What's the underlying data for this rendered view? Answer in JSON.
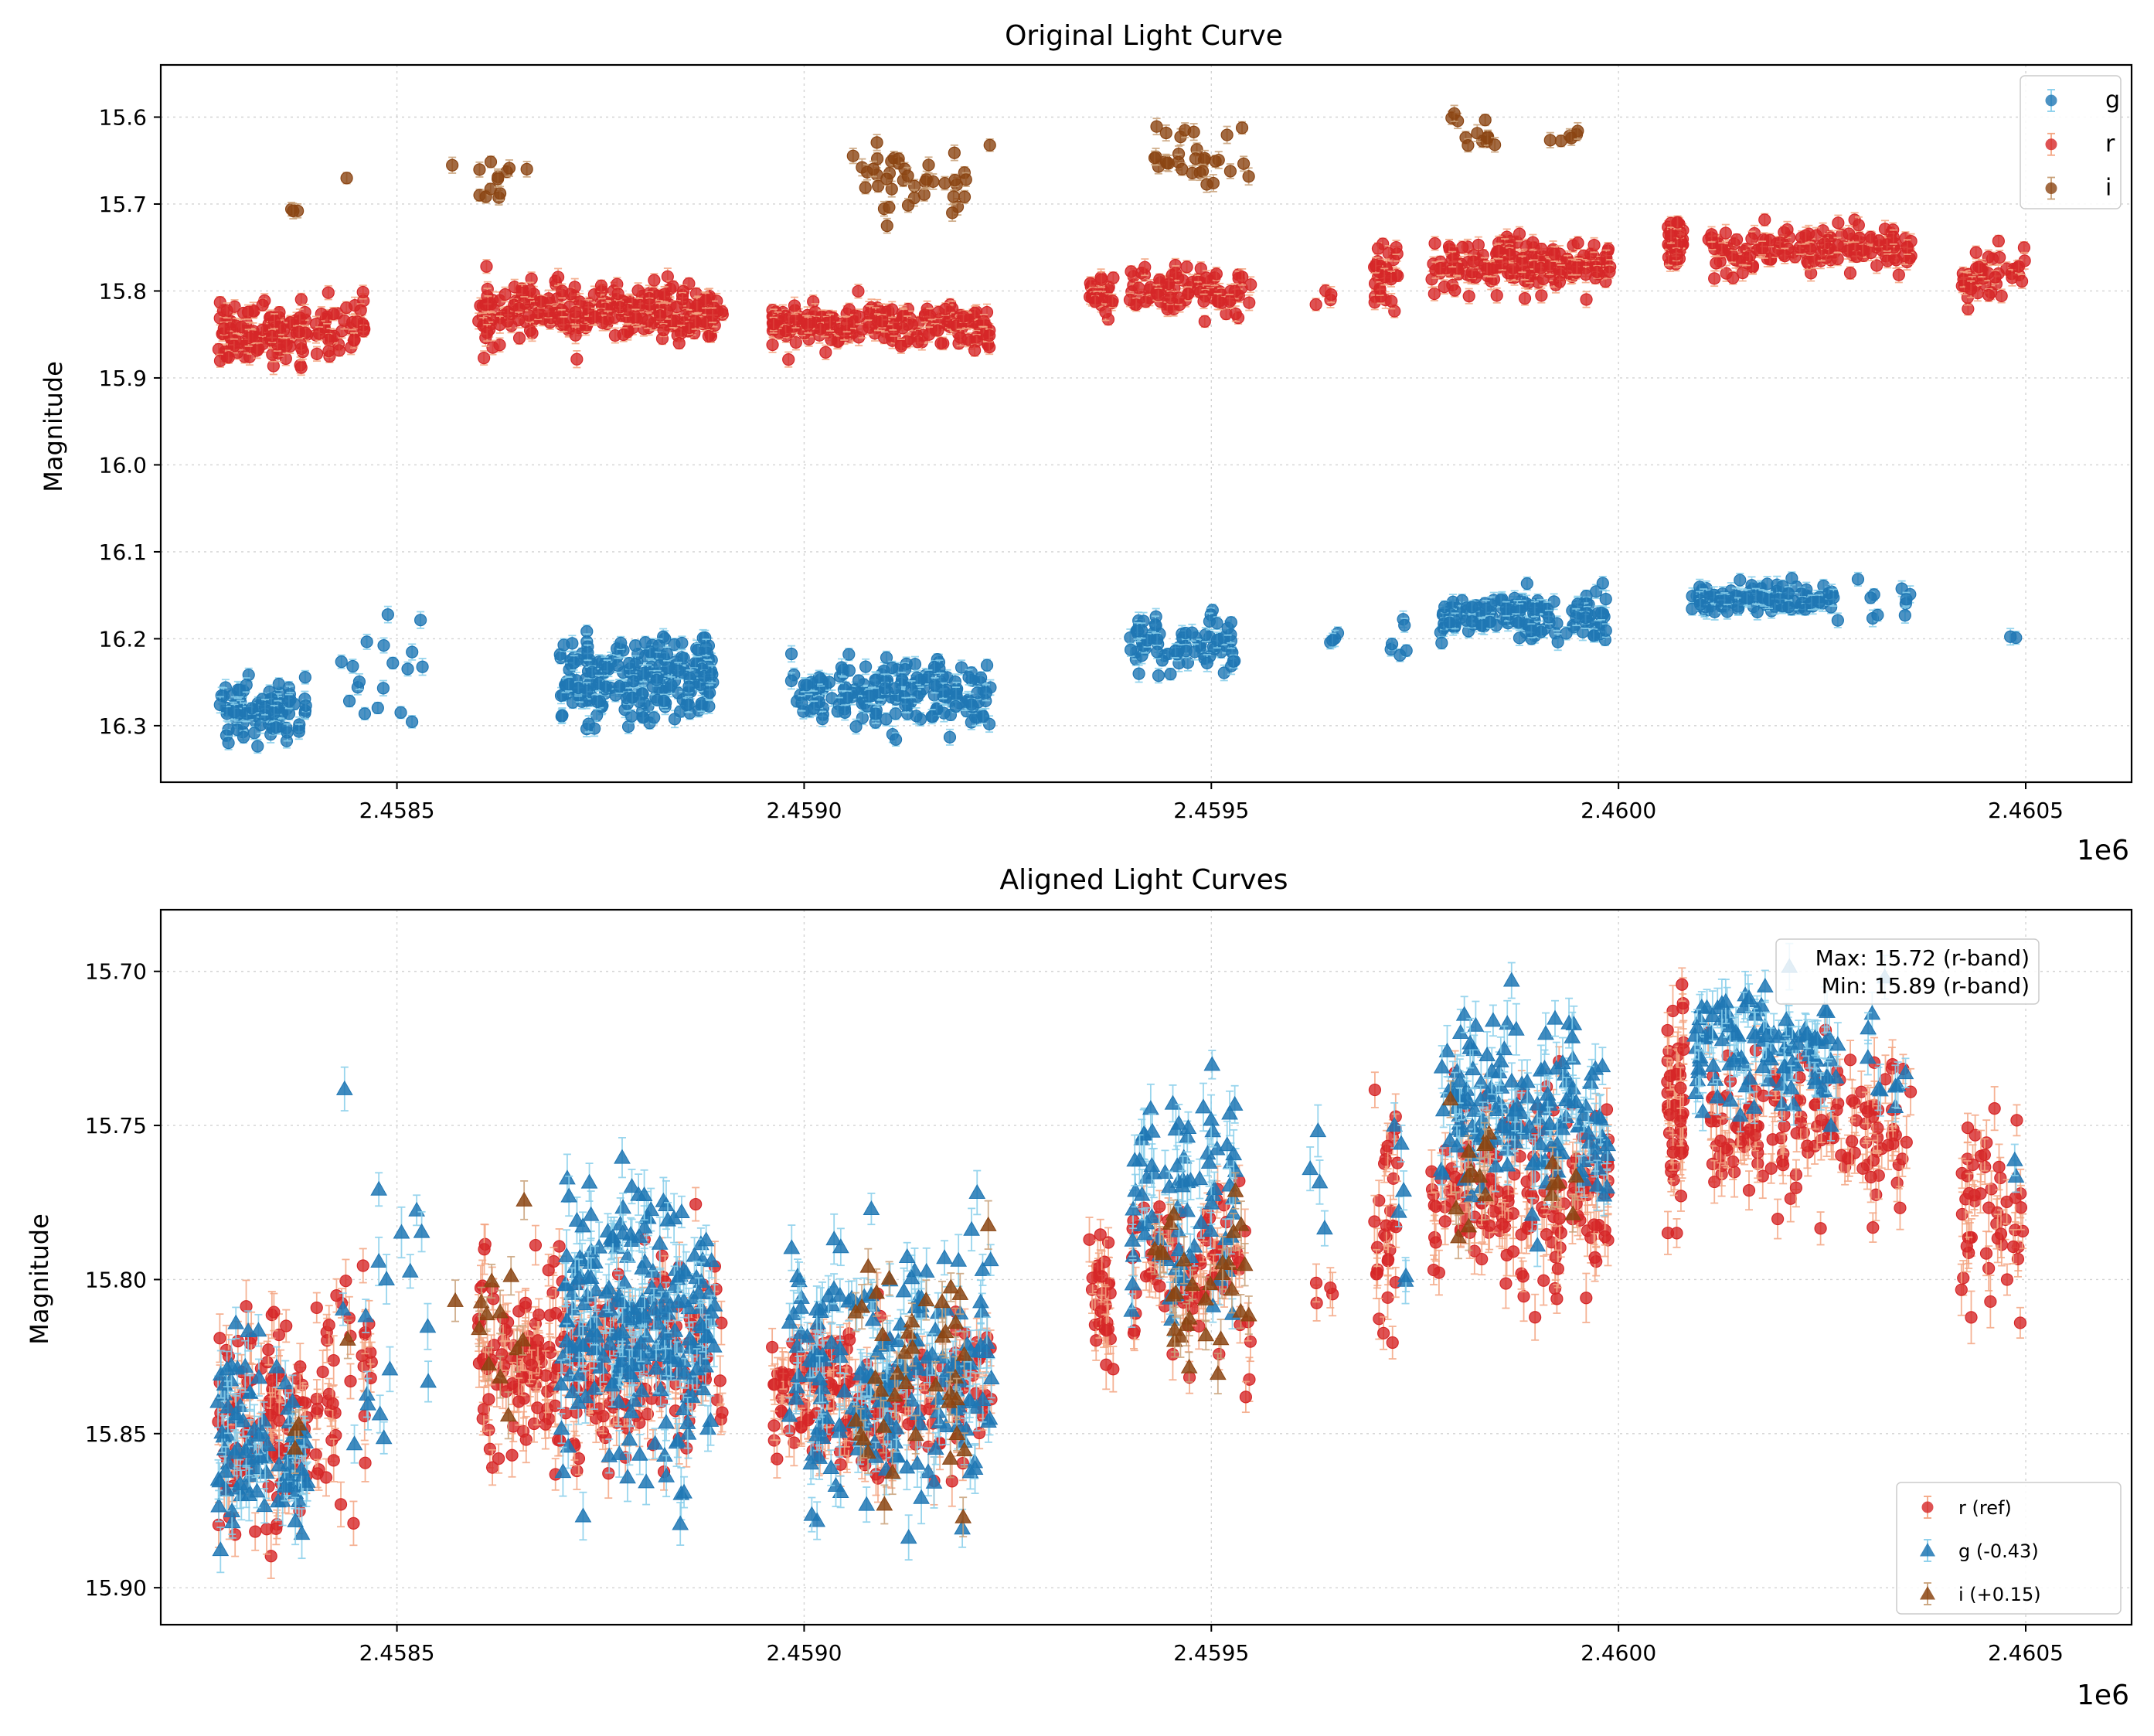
{
  "chart_data": [
    {
      "type": "scatter",
      "title": "Original Light Curve",
      "xlabel": "",
      "ylabel": "Magnitude",
      "x_offset_label": "1e6",
      "xlim": [
        2458210,
        2460630
      ],
      "ylim": [
        16.365,
        15.54
      ],
      "xticks": [
        2458500,
        2459000,
        2459500,
        2460000,
        2460500
      ],
      "xtick_labels": [
        "2.4585",
        "2.4590",
        "2.4595",
        "2.4600",
        "2.4605"
      ],
      "yticks": [
        15.6,
        15.7,
        15.8,
        15.9,
        16.0,
        16.1,
        16.2,
        16.3
      ],
      "ytick_labels": [
        "15.6",
        "15.7",
        "15.8",
        "15.9",
        "16.0",
        "16.1",
        "16.2",
        "16.3"
      ],
      "grid": true,
      "legend_position": "top-right",
      "legend": [
        "g",
        "r",
        "i"
      ],
      "series": [
        {
          "name": "g",
          "marker": "circle",
          "color": "#1f77b4",
          "errcolor": "#87ceeb",
          "clusters": [
            [
              2458280,
              2458390,
              16.285,
              0.018,
              90
            ],
            [
              2458430,
              2458540,
              16.245,
              0.03,
              18
            ],
            [
              2458700,
              2458890,
              16.245,
              0.022,
              230
            ],
            [
              2458980,
              2459230,
              16.26,
              0.02,
              190
            ],
            [
              2459400,
              2459530,
              16.205,
              0.018,
              80
            ],
            [
              2459620,
              2459660,
              16.195,
              0.008,
              4
            ],
            [
              2459720,
              2459740,
              16.205,
              0.018,
              6
            ],
            [
              2459780,
              2459990,
              16.175,
              0.014,
              150
            ],
            [
              2460090,
              2460270,
              16.155,
              0.01,
              110
            ],
            [
              2460290,
              2460360,
              16.16,
              0.012,
              10
            ],
            [
              2460480,
              2460490,
              16.195,
              0.006,
              2
            ]
          ]
        },
        {
          "name": "r",
          "marker": "circle",
          "color": "#d62728",
          "errcolor": "#f4a582",
          "clusters": [
            [
              2458280,
              2458390,
              16.2,
              0.0,
              0
            ],
            [
              2458280,
              2458390,
              15.85,
              0.016,
              110
            ],
            [
              2458400,
              2458470,
              15.835,
              0.02,
              40
            ],
            [
              2458600,
              2458900,
              15.825,
              0.016,
              280
            ],
            [
              2458960,
              2459230,
              15.838,
              0.012,
              220
            ],
            [
              2459350,
              2459380,
              15.805,
              0.012,
              30
            ],
            [
              2459400,
              2459550,
              15.8,
              0.014,
              90
            ],
            [
              2459620,
              2459650,
              15.805,
              0.006,
              4
            ],
            [
              2459700,
              2459730,
              15.78,
              0.018,
              30
            ],
            [
              2459770,
              2459990,
              15.77,
              0.014,
              180
            ],
            [
              2460060,
              2460080,
              15.745,
              0.016,
              50
            ],
            [
              2460110,
              2460360,
              15.75,
              0.012,
              150
            ],
            [
              2460420,
              2460500,
              15.78,
              0.014,
              50
            ]
          ]
        },
        {
          "name": "i",
          "marker": "circle",
          "color": "#8b4513",
          "errcolor": "#c8a078",
          "clusters": [
            [
              2458370,
              2458380,
              15.703,
              0.004,
              3
            ],
            [
              2458430,
              2458440,
              15.668,
              0.002,
              1
            ],
            [
              2458560,
              2458580,
              15.654,
              0.002,
              1
            ],
            [
              2458600,
              2458660,
              15.672,
              0.018,
              12
            ],
            [
              2459060,
              2459200,
              15.68,
              0.018,
              40
            ],
            [
              2459220,
              2459230,
              15.63,
              0.002,
              1
            ],
            [
              2459430,
              2459550,
              15.65,
              0.018,
              30
            ],
            [
              2459790,
              2459850,
              15.62,
              0.018,
              12
            ],
            [
              2459900,
              2459950,
              15.622,
              0.006,
              6
            ]
          ]
        }
      ]
    },
    {
      "type": "scatter",
      "title": "Aligned Light Curves",
      "xlabel": "",
      "ylabel": "Magnitude",
      "x_offset_label": "1e6",
      "xlim": [
        2458210,
        2460630
      ],
      "ylim": [
        15.912,
        15.68
      ],
      "xticks": [
        2458500,
        2459000,
        2459500,
        2460000,
        2460500
      ],
      "xtick_labels": [
        "2.4585",
        "2.4590",
        "2.4595",
        "2.4600",
        "2.4605"
      ],
      "yticks": [
        15.7,
        15.75,
        15.8,
        15.85,
        15.9
      ],
      "ytick_labels": [
        "15.70",
        "15.75",
        "15.80",
        "15.85",
        "15.90"
      ],
      "grid": true,
      "legend_position": "bottom-right",
      "legend": [
        "r (ref)",
        "g (-0.43)",
        "i (+0.15)"
      ],
      "annotation": {
        "line1": "Max: 15.72 (r-band)",
        "line2": "Min: 15.89 (r-band)",
        "position": "top-right"
      },
      "series": [
        {
          "name": "r (ref)",
          "marker": "circle",
          "color": "#d62728",
          "errcolor": "#f4a582",
          "clusters": [
            [
              2458280,
              2458390,
              15.85,
              0.016,
              110
            ],
            [
              2458400,
              2458470,
              15.835,
              0.02,
              40
            ],
            [
              2458600,
              2458900,
              15.825,
              0.016,
              280
            ],
            [
              2458960,
              2459230,
              15.838,
              0.012,
              220
            ],
            [
              2459350,
              2459380,
              15.805,
              0.012,
              30
            ],
            [
              2459400,
              2459550,
              15.8,
              0.014,
              90
            ],
            [
              2459620,
              2459650,
              15.805,
              0.006,
              4
            ],
            [
              2459700,
              2459730,
              15.78,
              0.018,
              30
            ],
            [
              2459770,
              2459990,
              15.77,
              0.014,
              180
            ],
            [
              2460060,
              2460080,
              15.745,
              0.016,
              50
            ],
            [
              2460110,
              2460360,
              15.75,
              0.012,
              150
            ],
            [
              2460420,
              2460500,
              15.78,
              0.014,
              50
            ]
          ]
        },
        {
          "name": "g (-0.43)",
          "marker": "triangle",
          "color": "#1f77b4",
          "errcolor": "#87ceeb",
          "clusters": [
            [
              2458280,
              2458390,
              15.855,
              0.018,
              90
            ],
            [
              2458430,
              2458540,
              15.815,
              0.03,
              18
            ],
            [
              2458700,
              2458890,
              15.815,
              0.022,
              230
            ],
            [
              2458980,
              2459230,
              15.83,
              0.02,
              190
            ],
            [
              2459400,
              2459530,
              15.775,
              0.018,
              80
            ],
            [
              2459620,
              2459660,
              15.765,
              0.008,
              4
            ],
            [
              2459720,
              2459740,
              15.775,
              0.018,
              6
            ],
            [
              2459780,
              2459990,
              15.745,
              0.014,
              150
            ],
            [
              2460090,
              2460270,
              15.725,
              0.01,
              110
            ],
            [
              2460290,
              2460360,
              15.73,
              0.012,
              10
            ],
            [
              2460480,
              2460490,
              15.765,
              0.006,
              2
            ]
          ]
        },
        {
          "name": "i (+0.15)",
          "marker": "triangle",
          "color": "#8b4513",
          "errcolor": "#c8a078",
          "clusters": [
            [
              2458370,
              2458380,
              15.853,
              0.004,
              3
            ],
            [
              2458430,
              2458440,
              15.818,
              0.002,
              1
            ],
            [
              2458560,
              2458580,
              15.804,
              0.002,
              1
            ],
            [
              2458600,
              2458660,
              15.822,
              0.018,
              12
            ],
            [
              2459060,
              2459200,
              15.83,
              0.018,
              40
            ],
            [
              2459220,
              2459230,
              15.78,
              0.002,
              1
            ],
            [
              2459430,
              2459550,
              15.8,
              0.018,
              30
            ],
            [
              2459790,
              2459850,
              15.77,
              0.018,
              12
            ],
            [
              2459900,
              2459950,
              15.772,
              0.006,
              6
            ]
          ]
        }
      ]
    }
  ]
}
